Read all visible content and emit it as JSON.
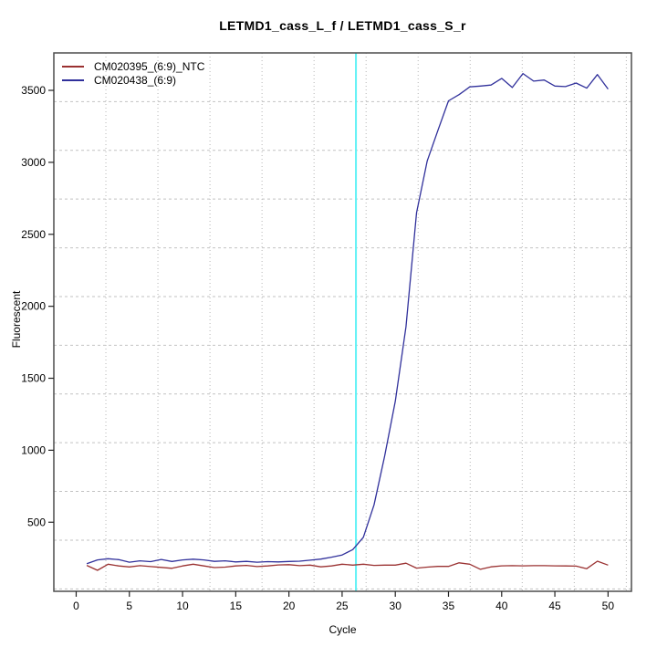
{
  "title": "LETMD1_cass_L_f / LETMD1_cass_S_r",
  "colors": {
    "ntc_line": "#9a3131",
    "sample_line": "#30309b",
    "threshold_line": "#5ff2f5",
    "grid_vertical": "#b5b5b5",
    "grid_horizontal": "#c2c2c2",
    "box": "#4d4d4d",
    "tick": "#222222"
  },
  "legend": {
    "entries": [
      {
        "label": "CM020395_(6:9)_NTC"
      },
      {
        "label": "CM020438_(6:9)"
      }
    ]
  },
  "chart_data": {
    "type": "line",
    "title": "LETMD1_cass_L_f / LETMD1_cass_S_r",
    "xlabel": "Cycle",
    "ylabel": "Fluorescent",
    "xlim": [
      -2.1,
      52.2
    ],
    "ylim": [
      20,
      3760
    ],
    "x_ticks": [
      0,
      5,
      10,
      15,
      20,
      25,
      30,
      35,
      40,
      45,
      50
    ],
    "y_ticks": [
      500,
      1000,
      1500,
      2000,
      2500,
      3000,
      3500
    ],
    "grid": "on",
    "legend_position": "top-left",
    "threshold_cycle": 26.3,
    "x": [
      1,
      2,
      3,
      4,
      5,
      6,
      7,
      8,
      9,
      10,
      11,
      12,
      13,
      14,
      15,
      16,
      17,
      18,
      19,
      20,
      21,
      22,
      23,
      24,
      25,
      26,
      27,
      28,
      29,
      30,
      31,
      32,
      33,
      34,
      35,
      36,
      37,
      38,
      39,
      40,
      41,
      42,
      43,
      44,
      45,
      46,
      47,
      48,
      49,
      50
    ],
    "series": [
      {
        "name": "CM020395_(6:9)_NTC",
        "color": "#9a3131",
        "values": [
          200,
          166,
          208,
          196,
          189,
          198,
          192,
          186,
          180,
          196,
          208,
          196,
          185,
          188,
          196,
          200,
          192,
          196,
          203,
          205,
          198,
          202,
          190,
          196,
          208,
          202,
          208,
          200,
          202,
          202,
          215,
          181,
          188,
          193,
          193,
          218,
          208,
          173,
          190,
          197,
          198,
          197,
          198,
          198,
          197,
          196,
          195,
          177,
          229,
          202
        ]
      },
      {
        "name": "CM020438_(6:9)",
        "color": "#30309b",
        "values": [
          212,
          238,
          246,
          240,
          222,
          232,
          226,
          241,
          227,
          238,
          243,
          238,
          228,
          232,
          224,
          228,
          222,
          226,
          224,
          227,
          229,
          236,
          244,
          257,
          272,
          310,
          395,
          620,
          958,
          1340,
          1857,
          2650,
          3010,
          3220,
          3427,
          3470,
          3524,
          3530,
          3537,
          3583,
          3520,
          3617,
          3564,
          3572,
          3530,
          3526,
          3551,
          3515,
          3610,
          3509
        ]
      }
    ]
  }
}
